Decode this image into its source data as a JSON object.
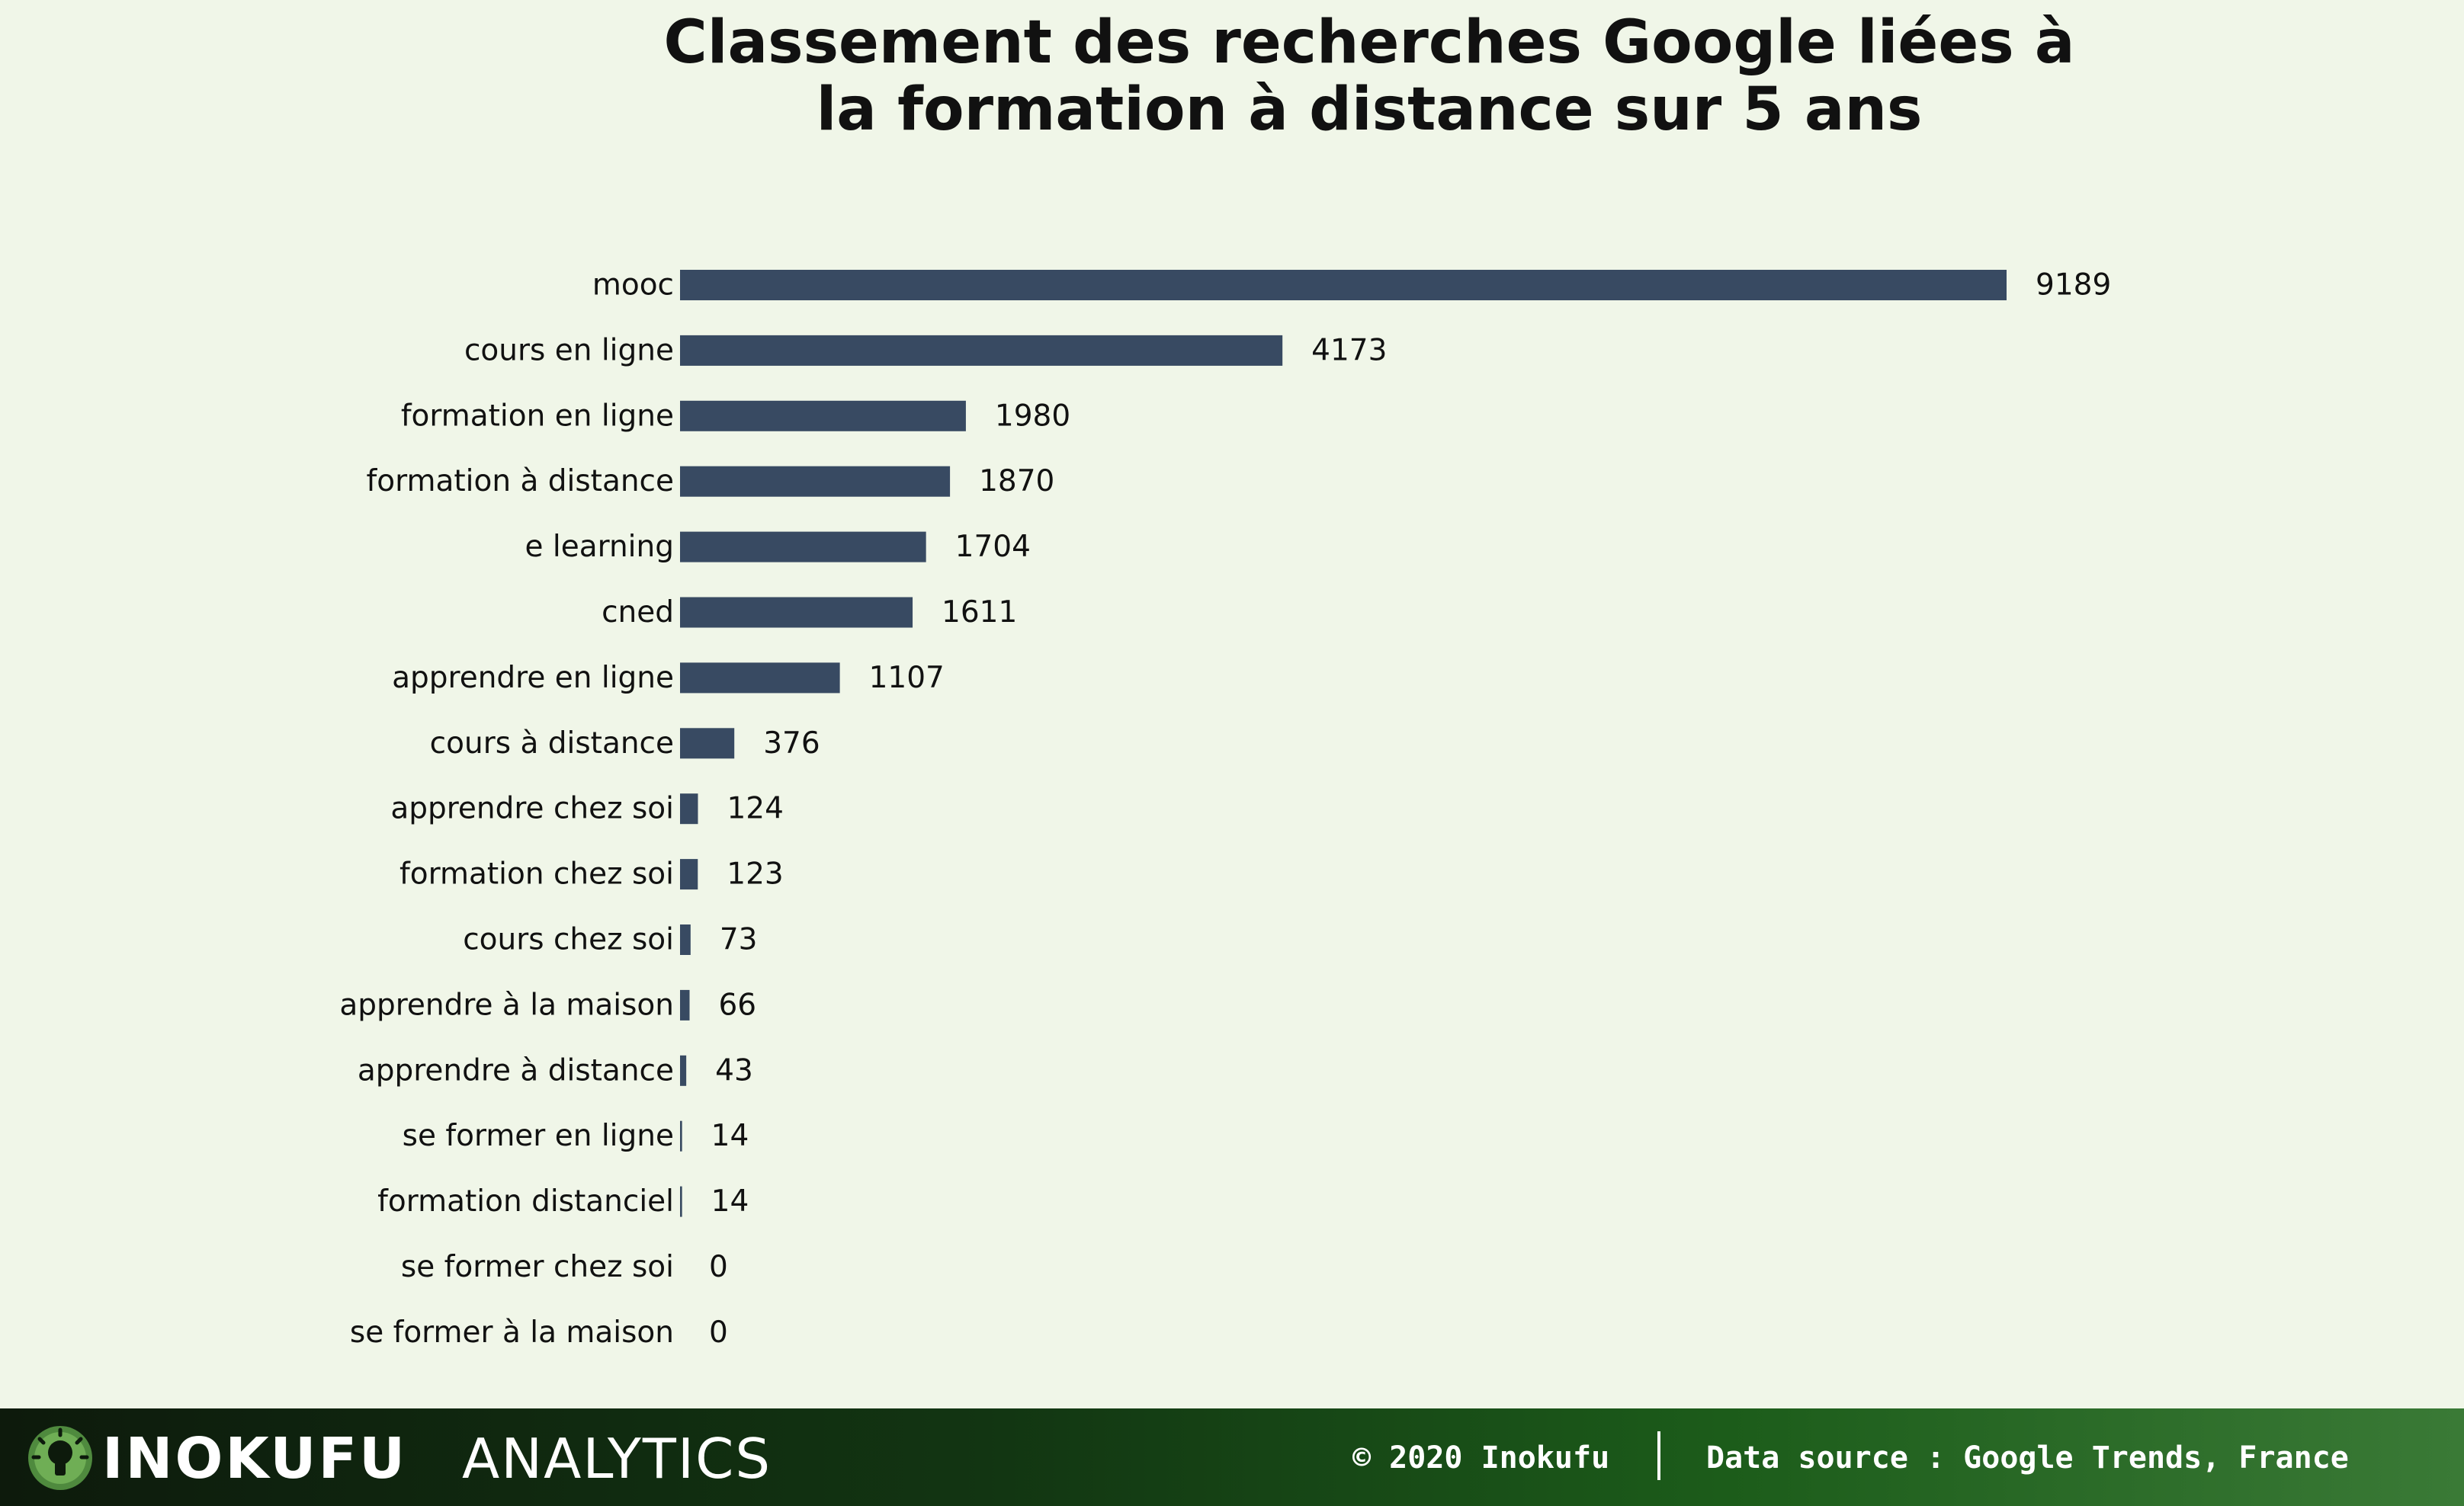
{
  "footer": {
    "brand": "INOKUFU",
    "brand_sub": "ANALYTICS",
    "copyright": "© 2020 Inokufu",
    "source": "Data source : Google Trends, France"
  },
  "colors": {
    "bar": "#384a62",
    "background": "#f0f6e8",
    "text": "#111111",
    "footer_dark": "#0d1a0c",
    "footer_light": "#3a7a36"
  },
  "chart_data": {
    "type": "bar",
    "orientation": "horizontal",
    "title_lines": [
      "Classement des recherches Google liées à",
      "la formation à distance sur 5 ans"
    ],
    "categories": [
      "mooc",
      "cours en ligne",
      "formation en ligne",
      "formation à distance",
      "e learning",
      "cned",
      "apprendre en ligne",
      "cours à distance",
      "apprendre chez soi",
      "formation chez soi",
      "cours chez soi",
      "apprendre à la maison",
      "apprendre à distance",
      "se former en ligne",
      "formation distanciel",
      "se former chez soi",
      "se former à la maison"
    ],
    "values": [
      9189,
      4173,
      1980,
      1870,
      1704,
      1611,
      1107,
      376,
      124,
      123,
      73,
      66,
      43,
      14,
      14,
      0,
      0
    ],
    "xlim": [
      0,
      9189
    ],
    "grid": false,
    "data_labels": true,
    "legend": "none"
  }
}
